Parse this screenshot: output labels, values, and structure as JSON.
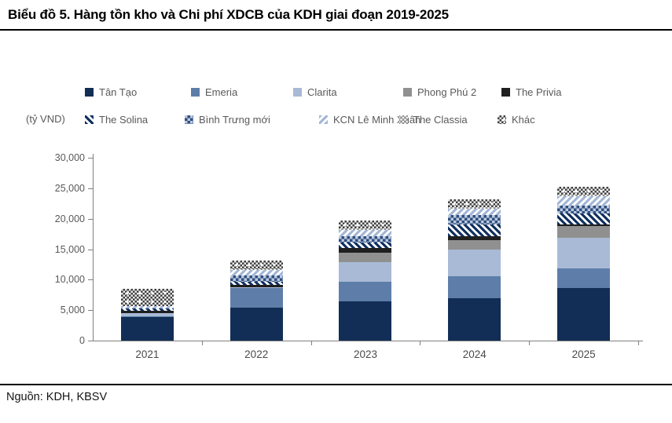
{
  "title": "Biểu đồ 5. Hàng tồn kho và Chi phí XDCB của KDH giai đoạn 2019-2025",
  "source": "Nguồn: KDH, KBSV",
  "colors": {
    "axis": "#808080",
    "legend_text": "#595959",
    "title_text": "#000000",
    "tan_tao": "#122e56",
    "emeria": "#5e7ea9",
    "clarita": "#a9bad6",
    "phong_phu_2": "#909090",
    "the_privia": "#1f1f1f"
  },
  "chart_data": {
    "type": "bar",
    "stacked": true,
    "title": "Hàng tồn kho và Chi phí XDCB của KDH giai đoạn 2019-2025",
    "ylabel": "(tỷ VND)",
    "ylim": [
      0,
      30000
    ],
    "ytick_interval": 5000,
    "ytick_labels": [
      "30,000",
      "25,000",
      "20,000",
      "15,000",
      "10,000",
      "5,000",
      "0"
    ],
    "grid": false,
    "legend_position": "top",
    "categories": [
      "2021",
      "2022",
      "2023",
      "2024",
      "2025"
    ],
    "series": [
      {
        "key": "tan-tao",
        "name": "Tân Tạo",
        "style": "solid",
        "color": "#122e56",
        "values": [
          3900,
          5400,
          6500,
          6900,
          8600
        ]
      },
      {
        "key": "emeria",
        "name": "Emeria",
        "style": "solid",
        "color": "#5e7ea9",
        "values": [
          100,
          3200,
          3200,
          3600,
          3300
        ]
      },
      {
        "key": "clarita",
        "name": "Clarita",
        "style": "solid",
        "color": "#a9bad6",
        "values": [
          500,
          200,
          3200,
          4500,
          5000
        ]
      },
      {
        "key": "phong-phu-2",
        "name": "Phong Phú 2",
        "style": "solid",
        "color": "#909090",
        "values": [
          0,
          0,
          1500,
          1500,
          1900
        ]
      },
      {
        "key": "the-privia",
        "name": "The Privia",
        "style": "solid",
        "color": "#1f1f1f",
        "values": [
          400,
          400,
          850,
          650,
          200
        ]
      },
      {
        "key": "the-solina",
        "name": "The Solina",
        "style": "diag-navy",
        "values": [
          350,
          450,
          850,
          1900,
          1900
        ]
      },
      {
        "key": "binh-trung-moi",
        "name": "Bình Trưng mới",
        "style": "checker-navy",
        "values": [
          0,
          1050,
          1050,
          1500,
          1300
        ]
      },
      {
        "key": "kcn-le-minh-xuan",
        "name": "KCN Lê Minh Xuân",
        "style": "diag-light",
        "values": [
          400,
          850,
          1050,
          1050,
          1500
        ]
      },
      {
        "key": "the-classia",
        "name": "The Classia",
        "style": "cross-gray",
        "values": [
          0,
          150,
          200,
          300,
          300
        ]
      },
      {
        "key": "khac",
        "name": "Khác",
        "style": "checker-dark",
        "values": [
          2850,
          1500,
          1300,
          1300,
          1200
        ]
      }
    ]
  }
}
